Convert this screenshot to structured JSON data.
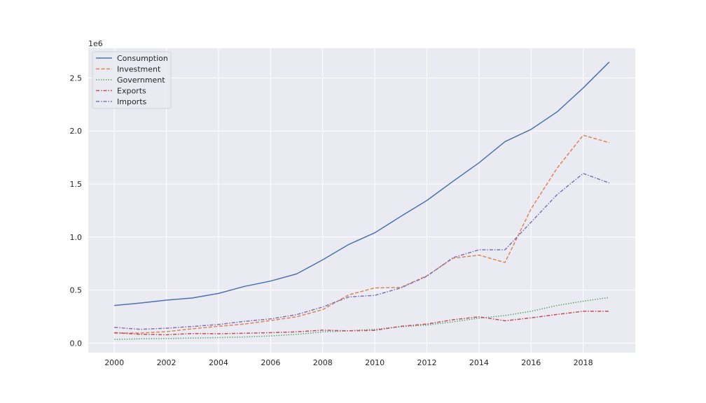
{
  "chart_data": {
    "type": "line",
    "title": "",
    "xlabel": "",
    "ylabel": "",
    "y_offset_label": "1e6",
    "xlim": [
      1999,
      2020
    ],
    "ylim": [
      -90000,
      2780000
    ],
    "x_ticks": [
      2000,
      2002,
      2004,
      2006,
      2008,
      2010,
      2012,
      2014,
      2016,
      2018
    ],
    "y_ticks": [
      0,
      500000,
      1000000,
      1500000,
      2000000,
      2500000
    ],
    "y_tick_labels": [
      "0.0",
      "0.5",
      "1.0",
      "1.5",
      "2.0",
      "2.5"
    ],
    "grid": true,
    "legend_position": "top-left",
    "background": "#eaeaf2",
    "x": [
      2000,
      2001,
      2002,
      2003,
      2004,
      2005,
      2006,
      2007,
      2008,
      2009,
      2010,
      2011,
      2012,
      2013,
      2014,
      2015,
      2016,
      2017,
      2018,
      2019
    ],
    "series": [
      {
        "name": "Consumption",
        "color": "#4c72b0",
        "dash": "solid",
        "values": [
          355000,
          378000,
          405000,
          425000,
          468000,
          535000,
          585000,
          652000,
          785000,
          930000,
          1040000,
          1195000,
          1345000,
          1525000,
          1700000,
          1900000,
          2015000,
          2180000,
          2405000,
          2650000
        ]
      },
      {
        "name": "Investment",
        "color": "#dd8452",
        "dash": "dashed",
        "values": [
          95000,
          95000,
          108000,
          135000,
          158000,
          180000,
          212000,
          248000,
          315000,
          455000,
          520000,
          525000,
          635000,
          800000,
          830000,
          760000,
          1265000,
          1650000,
          1960000,
          1890000
        ]
      },
      {
        "name": "Government",
        "color": "#55a868",
        "dash": "dotted",
        "values": [
          35000,
          40000,
          43000,
          47000,
          52000,
          58000,
          68000,
          82000,
          105000,
          115000,
          130000,
          155000,
          170000,
          200000,
          235000,
          260000,
          300000,
          355000,
          395000,
          430000
        ]
      },
      {
        "name": "Exports",
        "color": "#c44e52",
        "dash": "dashdot",
        "values": [
          98000,
          83000,
          78000,
          90000,
          88000,
          93000,
          98000,
          106000,
          122000,
          116000,
          120000,
          158000,
          180000,
          220000,
          248000,
          210000,
          238000,
          270000,
          300000,
          300000
        ]
      },
      {
        "name": "Imports",
        "color": "#8172b3",
        "dash": "dashdot",
        "values": [
          148000,
          130000,
          140000,
          157000,
          175000,
          205000,
          228000,
          268000,
          340000,
          435000,
          450000,
          520000,
          630000,
          805000,
          880000,
          880000,
          1140000,
          1400000,
          1600000,
          1510000
        ]
      }
    ]
  }
}
